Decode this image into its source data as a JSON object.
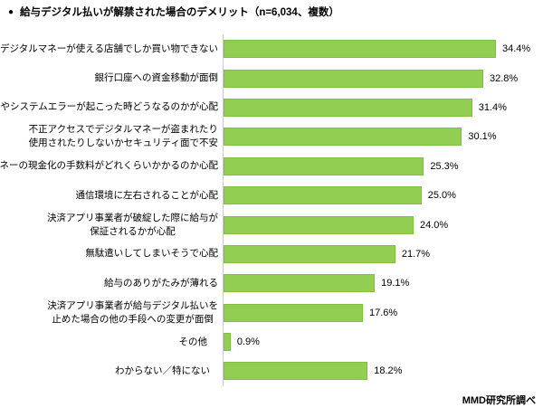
{
  "title": {
    "bullet": "●",
    "text": "給与デジタル払いが解禁された場合のデメリット（n=6,034、複数）"
  },
  "footer": {
    "source": "MMD研究所調べ"
  },
  "chart_data": {
    "type": "bar",
    "orientation": "horizontal",
    "title": "給与デジタル払いが解禁された場合のデメリット（n=6,034、複数）",
    "sample_note": "n=6,034、複数",
    "unit": "%",
    "xlim": [
      0,
      36
    ],
    "grid": false,
    "legend": "none",
    "bar_color": "#92CE51",
    "bar_border_color": "#7FBF41",
    "axis_line_color": "#cccccc",
    "categories": [
      "デジタルマネーが使える店舗でしか買い物できない",
      "銀行口座への資金移動が面倒",
      "停電やシステムエラーが起こった時どうなるのかが心配",
      "不正アクセスでデジタルマネーが盗まれたり使用されたりしないかセキュリティ面で不安",
      "デジタルマネーの現金化の手数料がどれくらいかかるのか心配",
      "通信環境に左右されることが心配",
      "決済アプリ事業者が破綻した際に給与が保証されるかが心配",
      "無駄遣いしてしまいそうで心配",
      "給与のありがたみが薄れる",
      "決済アプリ事業者が給与デジタル払いを止めた場合の他の手段への変更が面倒",
      "その他",
      "わからない／特にない"
    ],
    "values": [
      34.4,
      32.8,
      31.4,
      30.1,
      25.3,
      25.0,
      24.0,
      21.7,
      19.1,
      17.6,
      0.9,
      18.2
    ],
    "items": [
      {
        "label_lines": [
          "デジタルマネーが使える店舗でしか買い物できない"
        ],
        "value": 34.4,
        "display": "34.4%"
      },
      {
        "label_lines": [
          "銀行口座への資金移動が面倒"
        ],
        "value": 32.8,
        "display": "32.8%"
      },
      {
        "label_lines": [
          "停電やシステムエラーが起こった時どうなるのかが心配"
        ],
        "value": 31.4,
        "display": "31.4%"
      },
      {
        "label_lines": [
          "不正アクセスでデジタルマネーが盗まれたり",
          "使用されたりしないかセキュリティ面で不安"
        ],
        "value": 30.1,
        "display": "30.1%"
      },
      {
        "label_lines": [
          "デジタルマネーの現金化の手数料がどれくらいかかるのか心配"
        ],
        "value": 25.3,
        "display": "25.3%"
      },
      {
        "label_lines": [
          "通信環境に左右されることが心配"
        ],
        "value": 25.0,
        "display": "25.0%"
      },
      {
        "label_lines": [
          "決済アプリ事業者が破綻した際に給与が",
          "保証されるかが心配"
        ],
        "value": 24.0,
        "display": "24.0%"
      },
      {
        "label_lines": [
          "無駄遣いしてしまいそうで心配"
        ],
        "value": 21.7,
        "display": "21.7%"
      },
      {
        "label_lines": [
          "給与のありがたみが薄れる"
        ],
        "value": 19.1,
        "display": "19.1%"
      },
      {
        "label_lines": [
          "決済アプリ事業者が給与デジタル払いを",
          "止めた場合の他の手段への変更が面倒"
        ],
        "value": 17.6,
        "display": "17.6%"
      },
      {
        "label_lines": [
          "その他"
        ],
        "value": 0.9,
        "display": "0.9%"
      },
      {
        "label_lines": [
          "わからない／特にない"
        ],
        "value": 18.2,
        "display": "18.2%"
      }
    ]
  }
}
